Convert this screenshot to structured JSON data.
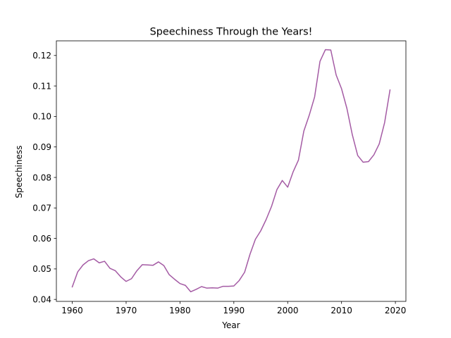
{
  "chart_data": {
    "type": "line",
    "title": "Speechiness Through the Years!",
    "xlabel": "Year",
    "ylabel": "Speechiness",
    "xlim": [
      1957.05,
      2021.95
    ],
    "ylim": [
      0.03935,
      0.1248
    ],
    "xticks": [
      1960,
      1970,
      1980,
      1990,
      2000,
      2010,
      2020
    ],
    "yticks": [
      0.04,
      0.05,
      0.06,
      0.07,
      0.08,
      0.09,
      0.1,
      0.11,
      0.12
    ],
    "xtick_labels": [
      "1960",
      "1970",
      "1980",
      "1990",
      "2000",
      "2010",
      "2020"
    ],
    "ytick_labels": [
      "0.04",
      "0.05",
      "0.06",
      "0.07",
      "0.08",
      "0.09",
      "0.10",
      "0.11",
      "0.12"
    ],
    "grid": false,
    "series": [
      {
        "color": "#a45ba4",
        "x": [
          1960,
          1961,
          1962,
          1963,
          1964,
          1965,
          1966,
          1967,
          1968,
          1969,
          1970,
          1971,
          1972,
          1973,
          1974,
          1975,
          1976,
          1977,
          1978,
          1979,
          1980,
          1981,
          1982,
          1983,
          1984,
          1985,
          1986,
          1987,
          1988,
          1989,
          1990,
          1991,
          1992,
          1993,
          1994,
          1995,
          1996,
          1997,
          1998,
          1999,
          2000,
          2001,
          2002,
          2003,
          2004,
          2005,
          2006,
          2007,
          2008,
          2009,
          2010,
          2011,
          2012,
          2013,
          2014,
          2015,
          2016,
          2017,
          2018,
          2019
        ],
        "y": [
          0.0441,
          0.049,
          0.0513,
          0.0527,
          0.0533,
          0.052,
          0.0525,
          0.0502,
          0.0494,
          0.0474,
          0.0459,
          0.0468,
          0.0494,
          0.0514,
          0.0513,
          0.0512,
          0.0523,
          0.0511,
          0.0481,
          0.0466,
          0.0452,
          0.0446,
          0.0425,
          0.0433,
          0.0442,
          0.0437,
          0.0438,
          0.0437,
          0.0443,
          0.0443,
          0.0444,
          0.0462,
          0.0489,
          0.0548,
          0.0597,
          0.0625,
          0.0662,
          0.0705,
          0.076,
          0.079,
          0.0768,
          0.0818,
          0.0857,
          0.0952,
          0.1004,
          0.1064,
          0.1181,
          0.1219,
          0.1218,
          0.1136,
          0.1091,
          0.1026,
          0.094,
          0.0872,
          0.085,
          0.0852,
          0.0874,
          0.091,
          0.098,
          0.1087
        ]
      }
    ]
  }
}
